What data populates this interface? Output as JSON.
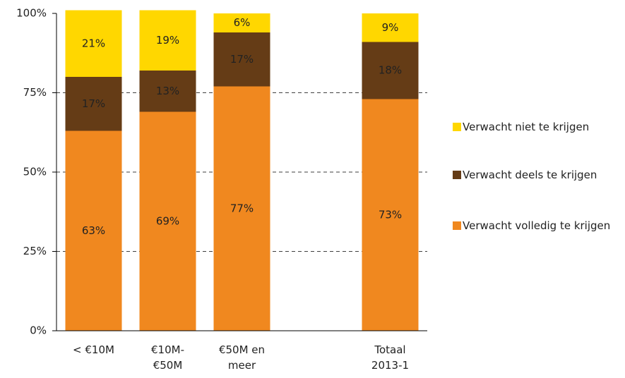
{
  "chart_data": {
    "type": "stacked_bar",
    "categories": [
      "< €10M",
      "€10M-€50M",
      "€50M en meer",
      null,
      "Totaal 2013-1"
    ],
    "series": [
      {
        "name": "Verwacht volledig te krijgen",
        "color": "#f0881f",
        "values": [
          63,
          69,
          77,
          null,
          73
        ],
        "value_labels": [
          "63%",
          "69%",
          "77%",
          null,
          "73%"
        ]
      },
      {
        "name": "Verwacht deels te krijgen",
        "color": "#653c16",
        "values": [
          17,
          13,
          17,
          null,
          18
        ],
        "value_labels": [
          "17%",
          "13%",
          "17%",
          null,
          "18%"
        ]
      },
      {
        "name": "Verwacht niet te krijgen",
        "color": "#ffd700",
        "values": [
          21,
          19,
          6,
          null,
          9
        ],
        "value_labels": [
          "21%",
          "19%",
          "6%",
          null,
          "9%"
        ]
      }
    ],
    "ylim": [
      0,
      100
    ],
    "yticks": [
      {
        "value": 0,
        "label": "0%"
      },
      {
        "value": 25,
        "label": "25%"
      },
      {
        "value": 50,
        "label": "50%"
      },
      {
        "value": 75,
        "label": "75%"
      },
      {
        "value": 100,
        "label": "100%"
      }
    ],
    "grid": true,
    "legend": "right"
  }
}
